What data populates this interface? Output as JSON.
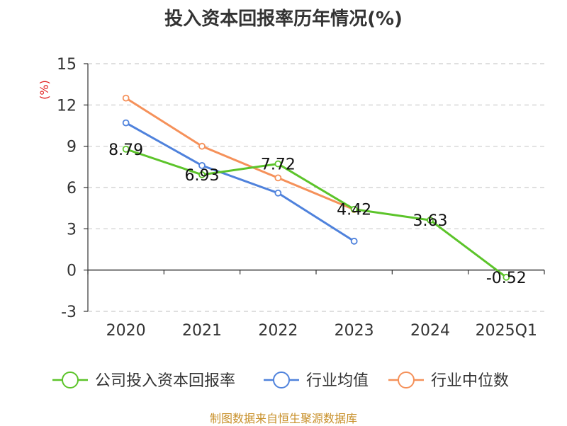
{
  "chart_data": {
    "type": "line",
    "title": "投入资本回报率历年情况(%)",
    "ylabel": "(%)",
    "categories": [
      "2020",
      "2021",
      "2022",
      "2023",
      "2024",
      "2025Q1"
    ],
    "ylim": [
      -3,
      15
    ],
    "yticks": [
      -3,
      0,
      3,
      6,
      9,
      12,
      15
    ],
    "grid": true,
    "legend_position": "bottom",
    "series": [
      {
        "name": "公司投入资本回报率",
        "color": "#5cc42a",
        "values": [
          8.79,
          6.93,
          7.72,
          4.42,
          3.63,
          -0.52
        ],
        "labels": [
          "8.79",
          "6.93",
          "7.72",
          "4.42",
          "3.63",
          "-0.52"
        ]
      },
      {
        "name": "行业均值",
        "color": "#4f82dc",
        "values": [
          10.7,
          7.6,
          5.6,
          2.1,
          null,
          null
        ]
      },
      {
        "name": "行业中位数",
        "color": "#f5915a",
        "values": [
          12.5,
          9.0,
          6.7,
          4.4,
          null,
          null
        ]
      }
    ]
  },
  "source": "制图数据来自恒生聚源数据库"
}
